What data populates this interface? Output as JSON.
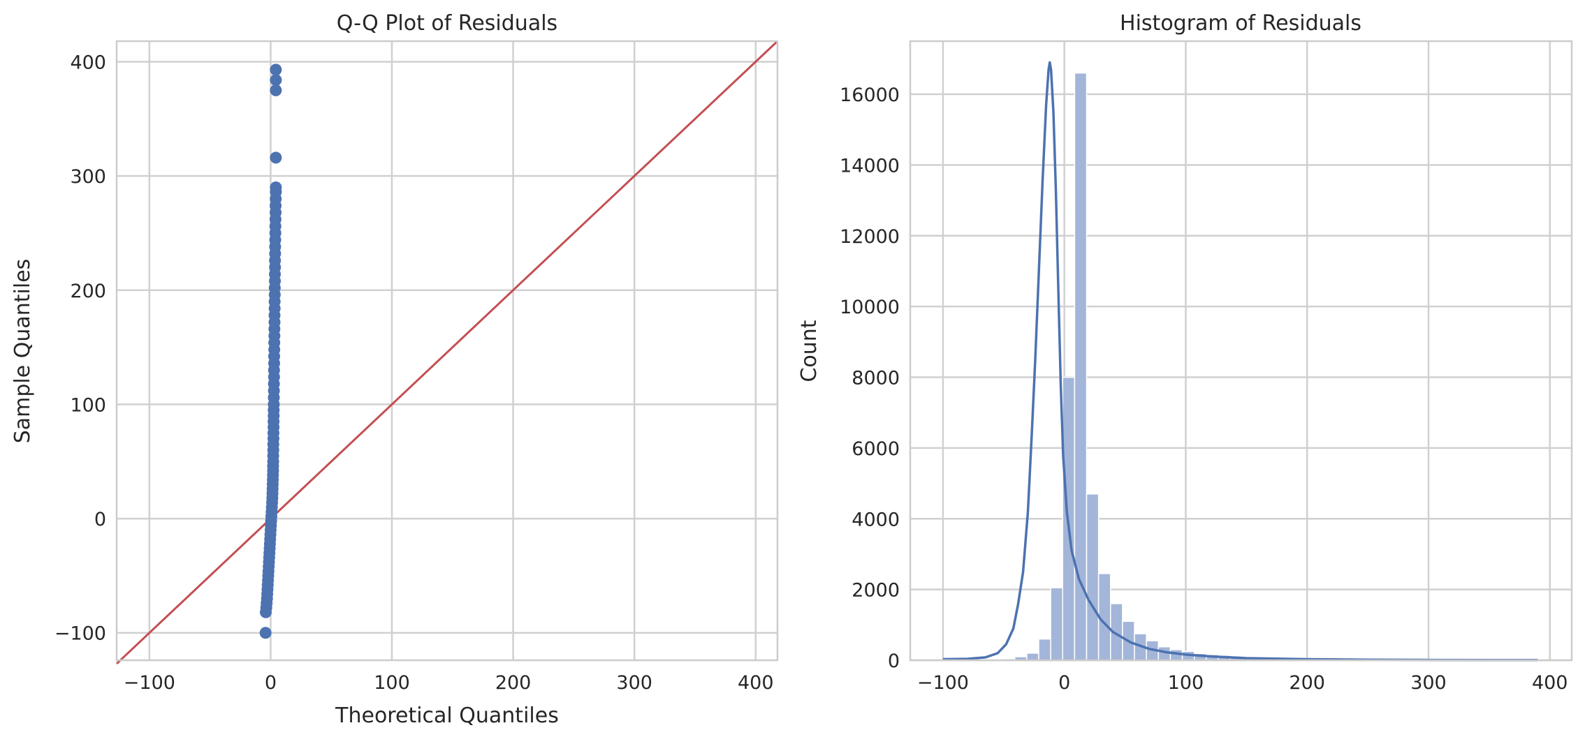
{
  "colors": {
    "points": "#4c72b0",
    "reference_line": "#c44e52",
    "bars": "#a3b6d9",
    "kde": "#4c72b0",
    "grid": "#d0d0d0",
    "spine": "#cccccc"
  },
  "chart_data": [
    {
      "type": "scatter",
      "title": "Q-Q Plot of Residuals",
      "xlabel": "Theoretical Quantiles",
      "ylabel": "Sample Quantiles",
      "xlim": [
        -127,
        418
      ],
      "ylim": [
        -124,
        418
      ],
      "xticks": [
        -100,
        0,
        100,
        200,
        300,
        400
      ],
      "xtick_labels": [
        "−100",
        "0",
        "100",
        "200",
        "300",
        "400"
      ],
      "yticks": [
        -100,
        0,
        100,
        200,
        300,
        400
      ],
      "ytick_labels": [
        "−100",
        "0",
        "100",
        "200",
        "300",
        "400"
      ],
      "grid": true,
      "reference_line": {
        "type": "45-degree",
        "points": [
          [
            -127,
            -127
          ],
          [
            418,
            418
          ]
        ]
      },
      "points": [
        [
          -4.2,
          -100
        ],
        [
          -4.0,
          -82
        ],
        [
          -3.6,
          -78
        ],
        [
          -3.3,
          -74
        ],
        [
          -3.0,
          -70
        ],
        [
          -2.8,
          -66
        ],
        [
          -2.6,
          -62
        ],
        [
          -2.4,
          -58
        ],
        [
          -2.2,
          -54
        ],
        [
          -2.0,
          -50
        ],
        [
          -1.8,
          -46
        ],
        [
          -1.6,
          -42
        ],
        [
          -1.4,
          -38
        ],
        [
          -1.2,
          -34
        ],
        [
          -1.0,
          -30
        ],
        [
          -0.8,
          -26
        ],
        [
          -0.6,
          -22
        ],
        [
          -0.4,
          -18
        ],
        [
          -0.2,
          -14
        ],
        [
          0.0,
          -10
        ],
        [
          0.2,
          -6
        ],
        [
          0.4,
          -2
        ],
        [
          0.6,
          2
        ],
        [
          0.8,
          6
        ],
        [
          1.0,
          10
        ],
        [
          1.2,
          14
        ],
        [
          1.4,
          18
        ],
        [
          1.5,
          22
        ],
        [
          1.6,
          26
        ],
        [
          1.7,
          30
        ],
        [
          1.8,
          34
        ],
        [
          1.9,
          38
        ],
        [
          2.0,
          42
        ],
        [
          2.0,
          46
        ],
        [
          2.1,
          50
        ],
        [
          2.1,
          55
        ],
        [
          2.2,
          60
        ],
        [
          2.2,
          65
        ],
        [
          2.3,
          70
        ],
        [
          2.3,
          75
        ],
        [
          2.4,
          80
        ],
        [
          2.4,
          85
        ],
        [
          2.5,
          90
        ],
        [
          2.5,
          95
        ],
        [
          2.6,
          100
        ],
        [
          2.6,
          106
        ],
        [
          2.7,
          112
        ],
        [
          2.7,
          118
        ],
        [
          2.8,
          124
        ],
        [
          2.8,
          130
        ],
        [
          2.9,
          136
        ],
        [
          2.9,
          142
        ],
        [
          3.0,
          148
        ],
        [
          3.0,
          154
        ],
        [
          3.1,
          160
        ],
        [
          3.1,
          166
        ],
        [
          3.2,
          172
        ],
        [
          3.2,
          178
        ],
        [
          3.3,
          184
        ],
        [
          3.3,
          190
        ],
        [
          3.4,
          196
        ],
        [
          3.4,
          202
        ],
        [
          3.5,
          208
        ],
        [
          3.5,
          214
        ],
        [
          3.6,
          220
        ],
        [
          3.6,
          226
        ],
        [
          3.7,
          232
        ],
        [
          3.7,
          238
        ],
        [
          3.8,
          244
        ],
        [
          3.9,
          250
        ],
        [
          3.9,
          256
        ],
        [
          4.0,
          262
        ],
        [
          4.1,
          268
        ],
        [
          4.1,
          274
        ],
        [
          4.2,
          280
        ],
        [
          4.3,
          286
        ],
        [
          4.3,
          290
        ],
        [
          4.3,
          316
        ],
        [
          4.3,
          375
        ],
        [
          4.3,
          384
        ],
        [
          4.3,
          393
        ]
      ]
    },
    {
      "type": "bar",
      "title": "Histogram of Residuals",
      "xlabel": "",
      "ylabel": "Count",
      "xlim": [
        -127,
        418
      ],
      "ylim": [
        0,
        17500
      ],
      "xticks": [
        -100,
        0,
        100,
        200,
        300,
        400
      ],
      "xtick_labels": [
        "−100",
        "0",
        "100",
        "200",
        "300",
        "400"
      ],
      "yticks": [
        0,
        2000,
        4000,
        6000,
        8000,
        10000,
        12000,
        14000,
        16000
      ],
      "ytick_labels": [
        "0",
        "2000",
        "4000",
        "6000",
        "8000",
        "10000",
        "12000",
        "14000",
        "16000"
      ],
      "grid": true,
      "bin_start": -100,
      "bin_width": 9.86,
      "values": [
        15,
        10,
        10,
        15,
        20,
        40,
        100,
        200,
        600,
        2050,
        8000,
        16600,
        4700,
        2450,
        1600,
        1100,
        750,
        550,
        380,
        300,
        250,
        190,
        160,
        140,
        120,
        80,
        60,
        45,
        35,
        25,
        20,
        15,
        15,
        10,
        10,
        8,
        8,
        6,
        6,
        5,
        5,
        4,
        4,
        3,
        3,
        3,
        2,
        2,
        2,
        2
      ],
      "kde": [
        [
          -100,
          30
        ],
        [
          -80,
          40
        ],
        [
          -65,
          80
        ],
        [
          -55,
          200
        ],
        [
          -48,
          450
        ],
        [
          -42,
          900
        ],
        [
          -38,
          1600
        ],
        [
          -34,
          2500
        ],
        [
          -30,
          4200
        ],
        [
          -27,
          6300
        ],
        [
          -24,
          8500
        ],
        [
          -21,
          11000
        ],
        [
          -18,
          13500
        ],
        [
          -15,
          15700
        ],
        [
          -13,
          16700
        ],
        [
          -12,
          16900
        ],
        [
          -11,
          16700
        ],
        [
          -9,
          15500
        ],
        [
          -7,
          13300
        ],
        [
          -5,
          10500
        ],
        [
          -3,
          7800
        ],
        [
          -1,
          5800
        ],
        [
          2,
          4200
        ],
        [
          6,
          3100
        ],
        [
          12,
          2300
        ],
        [
          20,
          1700
        ],
        [
          30,
          1150
        ],
        [
          40,
          800
        ],
        [
          55,
          500
        ],
        [
          70,
          320
        ],
        [
          85,
          220
        ],
        [
          100,
          160
        ],
        [
          120,
          110
        ],
        [
          150,
          60
        ],
        [
          200,
          30
        ],
        [
          250,
          15
        ],
        [
          300,
          8
        ],
        [
          350,
          5
        ],
        [
          390,
          4
        ]
      ]
    }
  ]
}
